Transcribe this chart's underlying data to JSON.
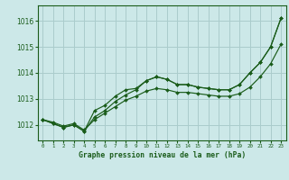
{
  "title": "Graphe pression niveau de la mer (hPa)",
  "background_color": "#cce8e8",
  "grid_color": "#aacccc",
  "line_color": "#1a5c1a",
  "xlim": [
    -0.5,
    23.5
  ],
  "ylim": [
    1011.4,
    1016.6
  ],
  "yticks": [
    1012,
    1013,
    1014,
    1015,
    1016
  ],
  "xticks": [
    0,
    1,
    2,
    3,
    4,
    5,
    6,
    7,
    8,
    9,
    10,
    11,
    12,
    13,
    14,
    15,
    16,
    17,
    18,
    19,
    20,
    21,
    22,
    23
  ],
  "line1_x": [
    0,
    1,
    2,
    3,
    4,
    5,
    6,
    7,
    8,
    9,
    10,
    11,
    12,
    13,
    14,
    15,
    16,
    17,
    18,
    19,
    20,
    21,
    22,
    23
  ],
  "line1_y": [
    1012.2,
    1012.05,
    1011.9,
    1012.0,
    1011.75,
    1012.3,
    1012.55,
    1012.9,
    1013.15,
    1013.35,
    1013.7,
    1013.85,
    1013.75,
    1013.55,
    1013.55,
    1013.45,
    1013.4,
    1013.35,
    1013.35,
    1013.55,
    1014.0,
    1014.4,
    1015.0,
    1016.1
  ],
  "line2_x": [
    0,
    1,
    2,
    3,
    4,
    5,
    6,
    7,
    8,
    9,
    10,
    11,
    12,
    13,
    14,
    15,
    16,
    17,
    18,
    19,
    20,
    21,
    22,
    23
  ],
  "line2_y": [
    1012.2,
    1012.05,
    1011.9,
    1012.0,
    1011.75,
    1012.55,
    1012.75,
    1013.1,
    1013.35,
    1013.4,
    1013.7,
    1013.85,
    1013.75,
    1013.55,
    1013.55,
    1013.45,
    1013.4,
    1013.35,
    1013.35,
    1013.55,
    1014.0,
    1014.4,
    1015.0,
    1016.1
  ],
  "line3_x": [
    0,
    1,
    2,
    3,
    4,
    5,
    6,
    7,
    8,
    9,
    10,
    11,
    12,
    13,
    14,
    15,
    16,
    17,
    18,
    19,
    20,
    21,
    22,
    23
  ],
  "line3_y": [
    1012.2,
    1012.1,
    1011.95,
    1012.05,
    1011.8,
    1012.2,
    1012.45,
    1012.7,
    1012.95,
    1013.1,
    1013.3,
    1013.4,
    1013.35,
    1013.25,
    1013.25,
    1013.2,
    1013.15,
    1013.1,
    1013.1,
    1013.2,
    1013.45,
    1013.85,
    1014.35,
    1015.1
  ]
}
